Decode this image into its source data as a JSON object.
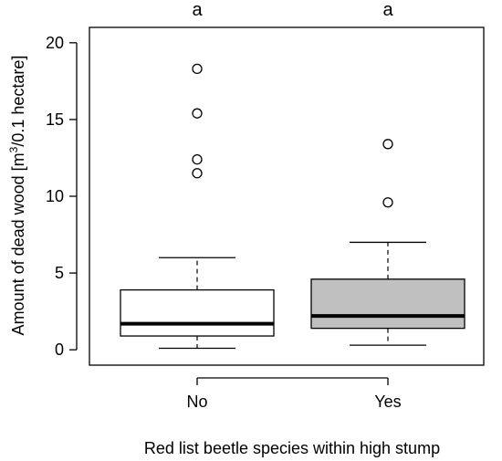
{
  "chart_data": {
    "type": "boxplot",
    "xlabel": "Red list beetle species within high stump",
    "ylabel_parts": {
      "before": "Amount of dead wood [m",
      "sup": "3",
      "after": "/0.1 hectare]"
    },
    "ylim": [
      -1,
      21
    ],
    "yticks": [
      0,
      5,
      10,
      15,
      20
    ],
    "grid": false,
    "categories": [
      "No",
      "Yes"
    ],
    "significance_letters": [
      "a",
      "a"
    ],
    "boxes": [
      {
        "category": "No",
        "whisker_low": 0.1,
        "q1": 0.9,
        "median": 1.7,
        "q3": 3.9,
        "whisker_high": 6.0,
        "outliers": [
          11.5,
          12.4,
          15.4,
          18.3
        ],
        "fill": "#ffffff"
      },
      {
        "category": "Yes",
        "whisker_low": 0.3,
        "q1": 1.4,
        "median": 2.2,
        "q3": 4.6,
        "whisker_high": 7.0,
        "outliers": [
          9.6,
          13.4
        ],
        "fill": "#c0c0c0"
      }
    ]
  }
}
